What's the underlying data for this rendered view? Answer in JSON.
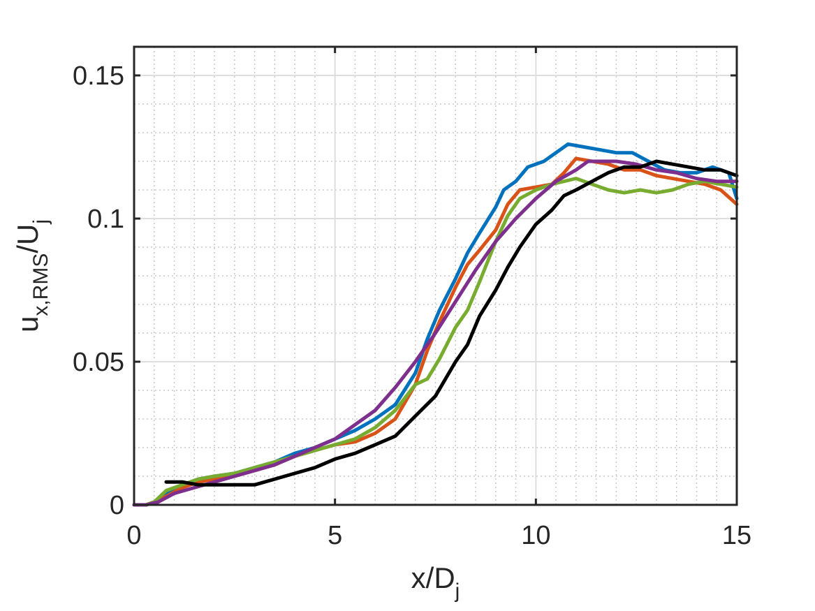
{
  "chart_data": {
    "type": "line",
    "title": "",
    "xlabel": "x/D_j",
    "ylabel": "u_x,RMS/U_j",
    "xlabel_parts": {
      "main": "x/D",
      "sub": "j"
    },
    "ylabel_parts": {
      "main": "u",
      "sub": "x,RMS",
      "mid": "/U",
      "sub2": "j"
    },
    "xlim": [
      0,
      15
    ],
    "ylim": [
      0,
      0.16
    ],
    "xticks": [
      0,
      5,
      10,
      15
    ],
    "xtick_labels": [
      "0",
      "5",
      "10",
      "15"
    ],
    "yticks": [
      0,
      0.05,
      0.1,
      0.15
    ],
    "ytick_labels": [
      "0",
      "0.05",
      "0.1",
      "0.15"
    ],
    "grid": true,
    "minor_grid": true,
    "legend": "none",
    "series": [
      {
        "color": "#0072BD",
        "x": [
          0,
          0.3,
          0.5,
          0.8,
          1.2,
          1.6,
          2.0,
          2.5,
          3.0,
          3.5,
          4.0,
          4.5,
          5.0,
          5.5,
          6.0,
          6.5,
          7.0,
          7.3,
          7.6,
          8.0,
          8.3,
          8.6,
          9.0,
          9.2,
          9.5,
          9.8,
          10.2,
          10.5,
          10.8,
          11.2,
          11.6,
          12.0,
          12.4,
          12.8,
          13.2,
          13.6,
          14.0,
          14.4,
          14.8,
          15.0
        ],
        "y": [
          0,
          0,
          0.001,
          0.004,
          0.007,
          0.009,
          0.01,
          0.011,
          0.013,
          0.015,
          0.018,
          0.02,
          0.023,
          0.026,
          0.03,
          0.035,
          0.046,
          0.058,
          0.068,
          0.079,
          0.088,
          0.095,
          0.104,
          0.11,
          0.113,
          0.118,
          0.12,
          0.123,
          0.126,
          0.125,
          0.124,
          0.123,
          0.123,
          0.12,
          0.117,
          0.116,
          0.116,
          0.118,
          0.116,
          0.107
        ]
      },
      {
        "color": "#D95319",
        "x": [
          0,
          0.3,
          0.5,
          0.8,
          1.2,
          1.6,
          2.0,
          2.5,
          3.0,
          3.5,
          4.0,
          4.5,
          5.0,
          5.5,
          6.0,
          6.5,
          7.0,
          7.3,
          7.6,
          8.0,
          8.3,
          8.6,
          9.0,
          9.3,
          9.6,
          10.0,
          10.4,
          10.7,
          11.0,
          11.4,
          11.8,
          12.2,
          12.6,
          13.0,
          13.4,
          13.8,
          14.2,
          14.6,
          15.0
        ],
        "y": [
          0,
          0,
          0.001,
          0.003,
          0.006,
          0.008,
          0.009,
          0.01,
          0.012,
          0.014,
          0.017,
          0.019,
          0.021,
          0.022,
          0.025,
          0.03,
          0.042,
          0.054,
          0.064,
          0.076,
          0.084,
          0.089,
          0.096,
          0.105,
          0.11,
          0.111,
          0.112,
          0.116,
          0.121,
          0.12,
          0.119,
          0.117,
          0.117,
          0.115,
          0.114,
          0.113,
          0.112,
          0.11,
          0.105
        ]
      },
      {
        "color": "#77AC30",
        "x": [
          0,
          0.3,
          0.5,
          0.8,
          1.2,
          1.6,
          2.0,
          2.5,
          3.0,
          3.5,
          4.0,
          4.5,
          5.0,
          5.5,
          6.0,
          6.5,
          7.0,
          7.3,
          7.6,
          8.0,
          8.3,
          8.6,
          9.0,
          9.3,
          9.6,
          10.0,
          10.4,
          10.7,
          11.0,
          11.4,
          11.8,
          12.2,
          12.6,
          13.0,
          13.4,
          13.8,
          14.2,
          14.6,
          15.0
        ],
        "y": [
          0,
          0,
          0.001,
          0.005,
          0.007,
          0.009,
          0.01,
          0.011,
          0.013,
          0.015,
          0.017,
          0.019,
          0.021,
          0.023,
          0.027,
          0.033,
          0.042,
          0.044,
          0.051,
          0.062,
          0.068,
          0.078,
          0.092,
          0.101,
          0.107,
          0.11,
          0.112,
          0.113,
          0.114,
          0.112,
          0.11,
          0.109,
          0.11,
          0.109,
          0.11,
          0.112,
          0.113,
          0.112,
          0.111
        ]
      },
      {
        "color": "#7E2F8E",
        "x": [
          0,
          0.3,
          0.6,
          1.0,
          1.5,
          2.0,
          2.5,
          3.0,
          3.5,
          4.0,
          4.5,
          5.0,
          5.5,
          6.0,
          6.5,
          7.0,
          7.5,
          8.0,
          8.5,
          9.0,
          9.5,
          10.0,
          10.5,
          11.0,
          11.3,
          11.7,
          12.0,
          12.5,
          13.0,
          13.5,
          14.0,
          14.5,
          15.0
        ],
        "y": [
          0,
          0,
          0.001,
          0.004,
          0.006,
          0.008,
          0.01,
          0.012,
          0.014,
          0.017,
          0.02,
          0.023,
          0.028,
          0.033,
          0.041,
          0.05,
          0.06,
          0.071,
          0.082,
          0.092,
          0.1,
          0.107,
          0.113,
          0.117,
          0.12,
          0.12,
          0.12,
          0.119,
          0.117,
          0.116,
          0.114,
          0.113,
          0.113
        ]
      },
      {
        "color": "#000000",
        "x": [
          0.8,
          1.2,
          1.6,
          2.0,
          2.5,
          3.0,
          3.5,
          4.0,
          4.5,
          5.0,
          5.5,
          6.0,
          6.5,
          7.0,
          7.5,
          8.0,
          8.3,
          8.6,
          9.0,
          9.3,
          9.6,
          10.0,
          10.4,
          10.7,
          11.0,
          11.4,
          11.8,
          12.2,
          12.6,
          13.0,
          13.4,
          13.8,
          14.2,
          14.6,
          15.0
        ],
        "y": [
          0.008,
          0.008,
          0.007,
          0.007,
          0.007,
          0.007,
          0.009,
          0.011,
          0.013,
          0.016,
          0.018,
          0.021,
          0.024,
          0.031,
          0.038,
          0.05,
          0.056,
          0.066,
          0.075,
          0.083,
          0.09,
          0.098,
          0.103,
          0.108,
          0.11,
          0.113,
          0.116,
          0.118,
          0.118,
          0.12,
          0.119,
          0.118,
          0.117,
          0.117,
          0.115
        ]
      }
    ]
  }
}
